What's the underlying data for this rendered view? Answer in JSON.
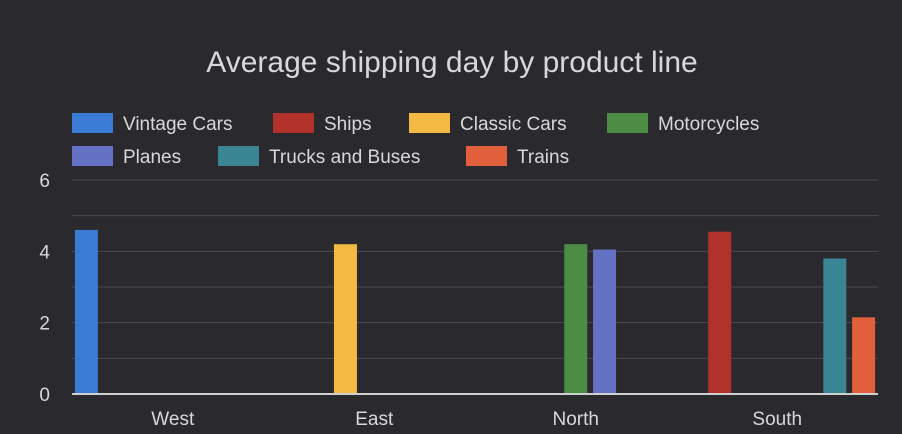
{
  "chart_data": {
    "type": "bar",
    "title": "Average shipping day by product line",
    "xlabel": "",
    "ylabel": "",
    "ylim": [
      0,
      6
    ],
    "yticks": [
      "0",
      "2",
      "4",
      "6"
    ],
    "grid": true,
    "legend_position": "top",
    "categories": [
      "West",
      "East",
      "North",
      "South"
    ],
    "series": [
      {
        "name": "Vintage Cars",
        "color": "#3a7bd5",
        "values": [
          4.6,
          null,
          null,
          null
        ]
      },
      {
        "name": "Ships",
        "color": "#b2312b",
        "values": [
          null,
          null,
          null,
          4.55
        ]
      },
      {
        "name": "Classic Cars",
        "color": "#f4b942",
        "values": [
          null,
          4.2,
          null,
          null
        ]
      },
      {
        "name": "Motorcycles",
        "color": "#4c8c45",
        "values": [
          null,
          null,
          4.2,
          null
        ]
      },
      {
        "name": "Planes",
        "color": "#6470c4",
        "values": [
          null,
          null,
          4.05,
          null
        ]
      },
      {
        "name": "Trucks and Buses",
        "color": "#3a8593",
        "values": [
          null,
          null,
          null,
          3.8
        ]
      },
      {
        "name": "Trains",
        "color": "#e15f3b",
        "values": [
          null,
          null,
          null,
          2.15
        ]
      }
    ]
  },
  "colors": {
    "background": "#2a2a2e",
    "text": "#d8d8d8",
    "gridline": "#4a4a50",
    "baseline": "#cfcfcf"
  }
}
